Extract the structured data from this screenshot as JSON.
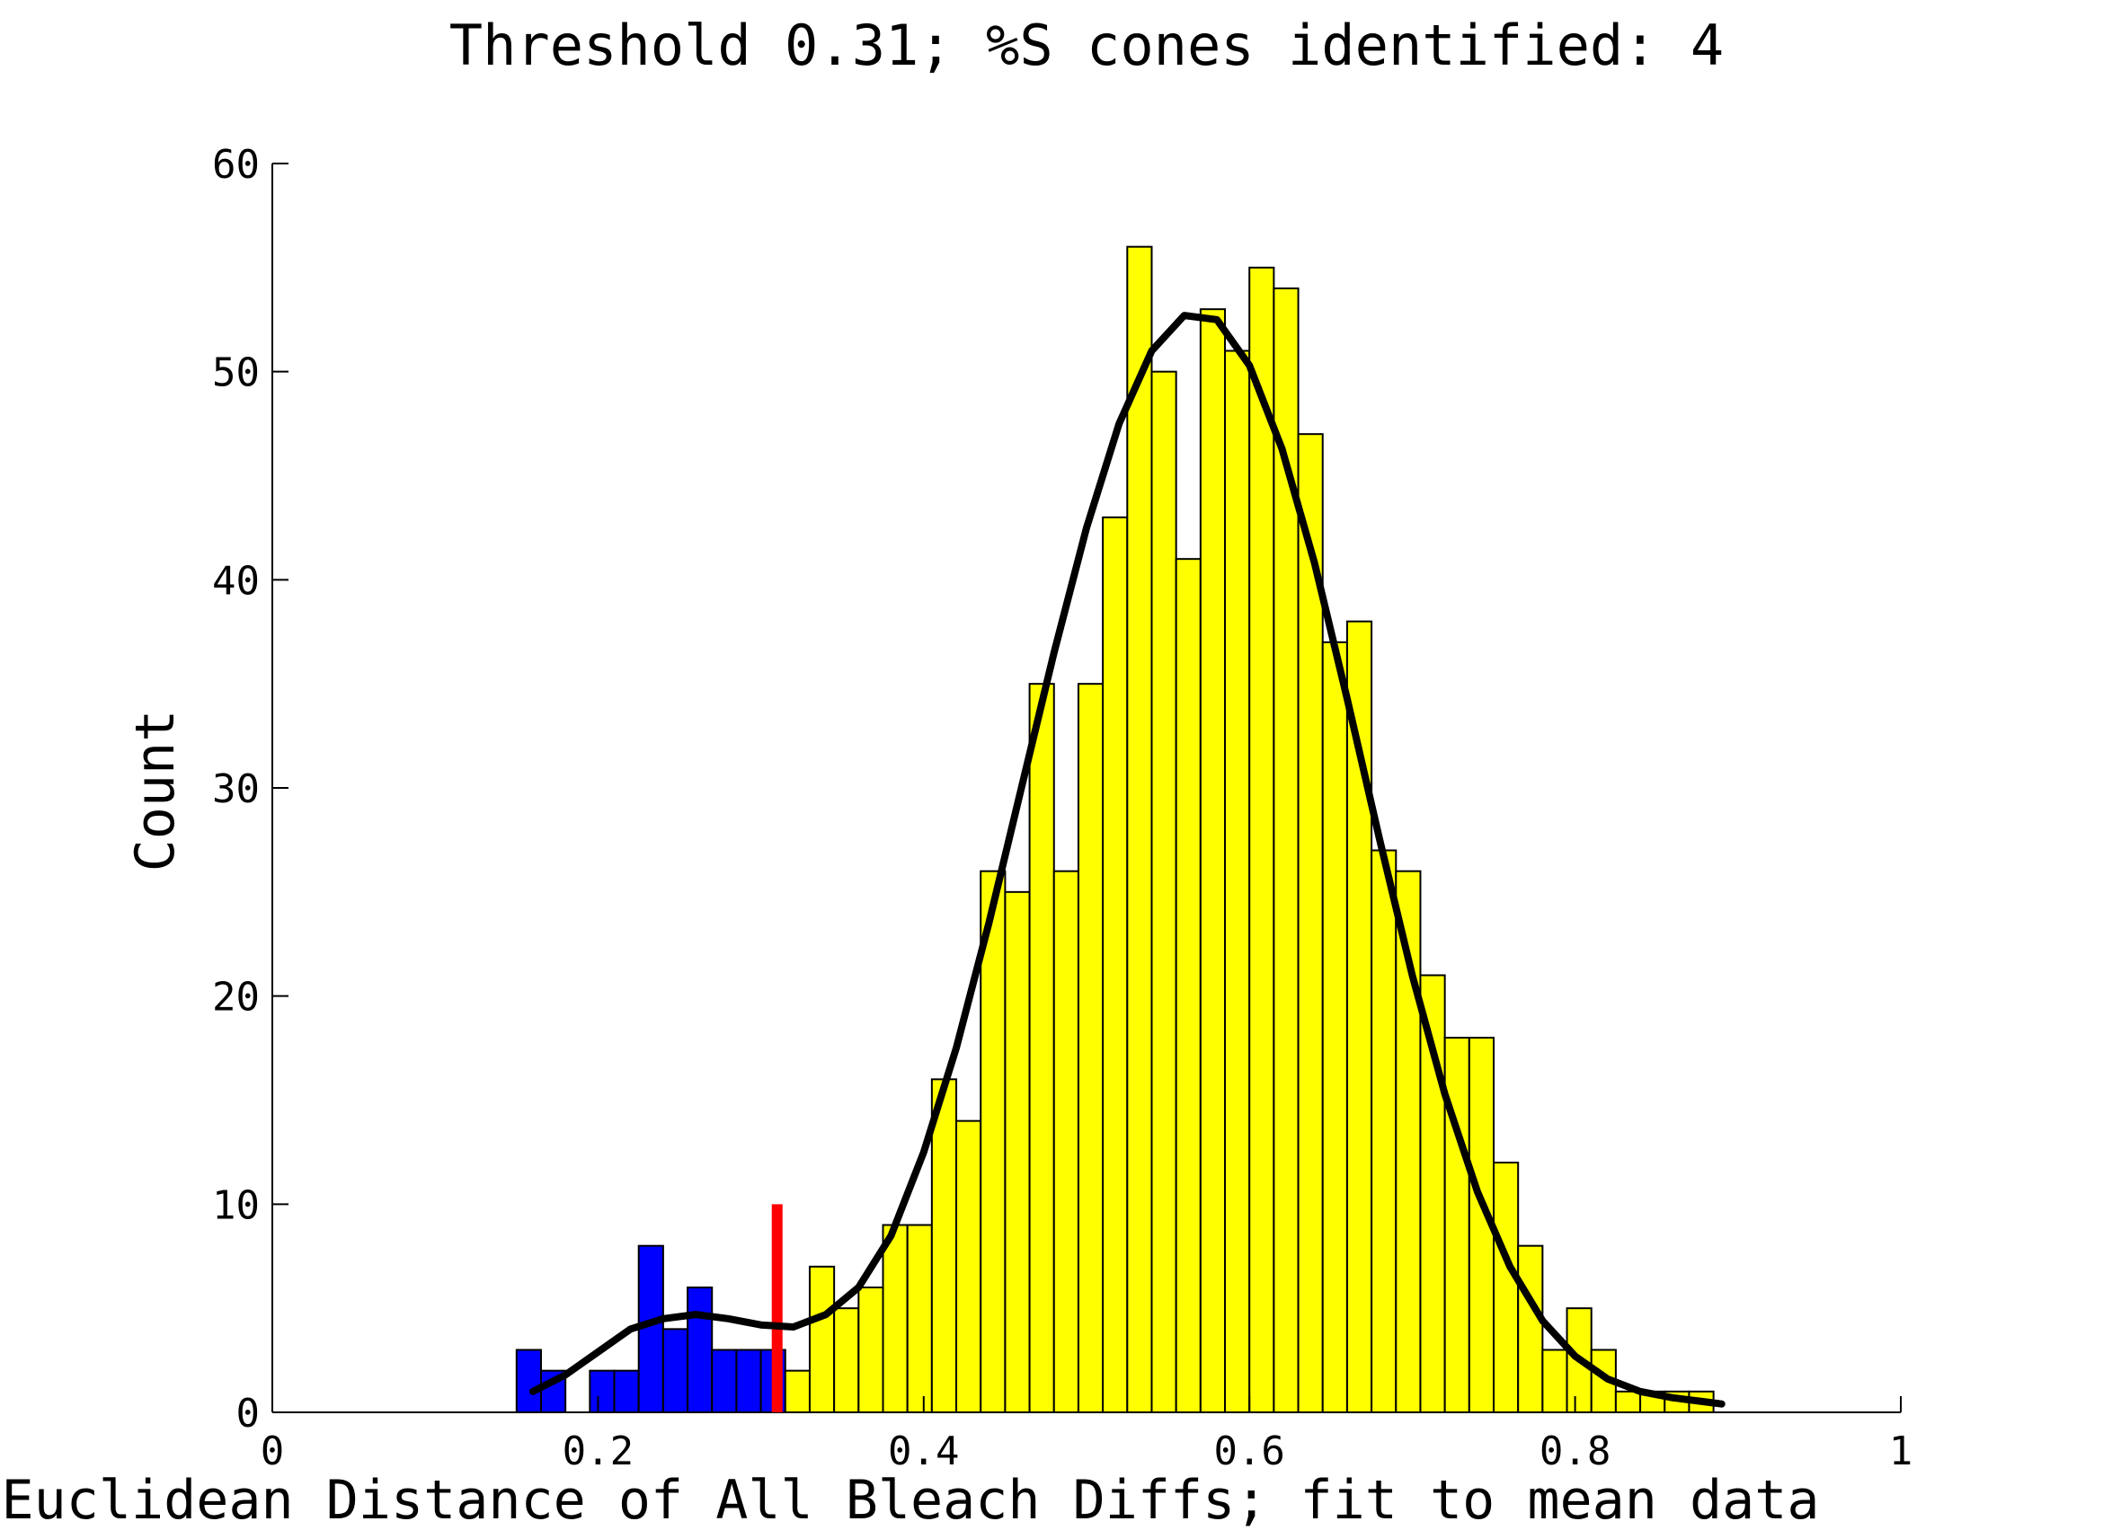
{
  "chart_data": {
    "type": "bar",
    "title": "Threshold 0.31; %S cones identified: 4",
    "xlabel": "Euclidean Distance of All Bleach Diffs; fit to mean data",
    "ylabel": "Count",
    "xlim": [
      0,
      1
    ],
    "ylim": [
      0,
      60
    ],
    "xticks": [
      0,
      0.2,
      0.4,
      0.6,
      0.8,
      1
    ],
    "xtick_labels": [
      "0",
      "0.2",
      "0.4",
      "0.6",
      "0.8",
      "1"
    ],
    "yticks": [
      0,
      10,
      20,
      30,
      40,
      50,
      60
    ],
    "ytick_labels": [
      "0",
      "10",
      "20",
      "30",
      "40",
      "50",
      "60"
    ],
    "grid": false,
    "bin_width": 0.015,
    "bin_start": 0.15,
    "counts": [
      3,
      2,
      0,
      2,
      2,
      8,
      4,
      6,
      3,
      3,
      3,
      2,
      7,
      5,
      6,
      9,
      9,
      16,
      14,
      26,
      25,
      35,
      26,
      35,
      43,
      56,
      50,
      41,
      53,
      51,
      55,
      54,
      47,
      37,
      38,
      27,
      26,
      21,
      18,
      18,
      12,
      8,
      3,
      5,
      3,
      1,
      1,
      1,
      1
    ],
    "threshold": 0.31,
    "threshold_line_height": 10,
    "colors": {
      "below_threshold": "#0000ff",
      "above_threshold": "#ffff00",
      "threshold_line": "#ff0000",
      "fit_curve": "#000000"
    },
    "fit_curve": {
      "x": [
        0.16,
        0.18,
        0.2,
        0.22,
        0.24,
        0.26,
        0.28,
        0.3,
        0.32,
        0.34,
        0.36,
        0.38,
        0.4,
        0.42,
        0.44,
        0.46,
        0.48,
        0.5,
        0.52,
        0.54,
        0.56,
        0.58,
        0.6,
        0.62,
        0.64,
        0.66,
        0.68,
        0.7,
        0.72,
        0.74,
        0.76,
        0.78,
        0.8,
        0.82,
        0.84,
        0.86,
        0.88,
        0.89
      ],
      "y": [
        1.0,
        1.8,
        2.9,
        4.0,
        4.5,
        4.7,
        4.5,
        4.2,
        4.1,
        4.7,
        6.0,
        8.5,
        12.5,
        17.5,
        23.5,
        30.0,
        36.5,
        42.5,
        47.5,
        51.0,
        52.7,
        52.5,
        50.3,
        46.3,
        40.8,
        34.3,
        27.5,
        21.0,
        15.3,
        10.6,
        7.0,
        4.4,
        2.7,
        1.6,
        1.0,
        0.7,
        0.5,
        0.4
      ]
    }
  }
}
